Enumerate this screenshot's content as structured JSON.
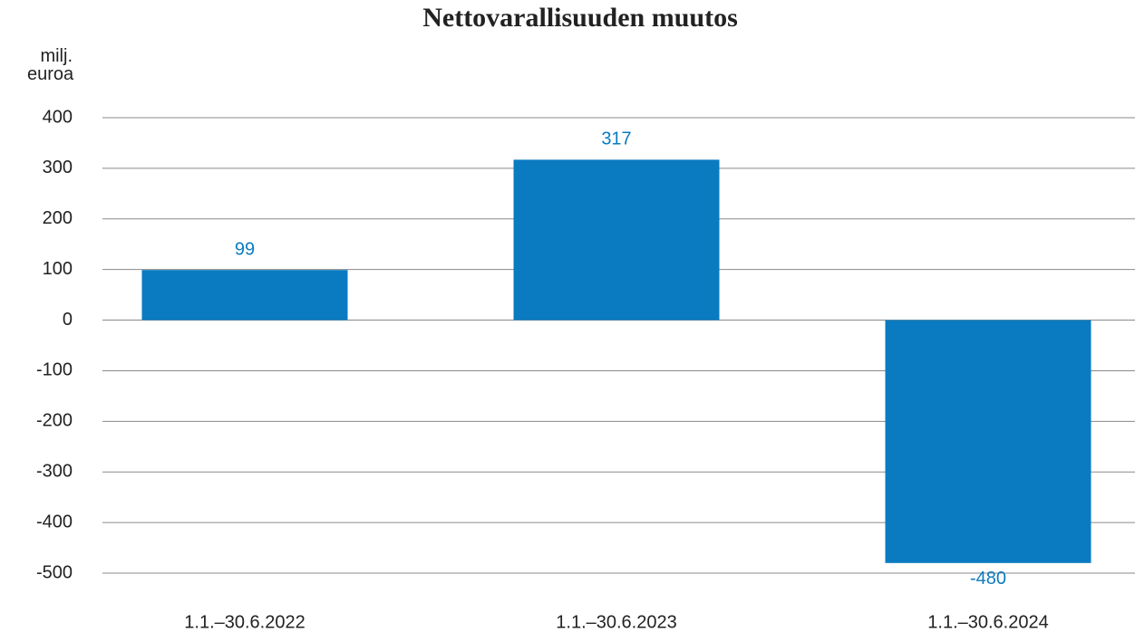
{
  "chart_data": {
    "type": "bar",
    "title": "Nettovarallisuuden muutos",
    "ylabel": "milj. euroa",
    "categories": [
      "1.1.–30.6.2022",
      "1.1.–30.6.2023",
      "1.1.–30.6.2024"
    ],
    "values": [
      99,
      317,
      -480
    ],
    "color": "#0a7bc1",
    "ylim": [
      -500,
      400
    ],
    "yticks": [
      -500,
      -400,
      -300,
      -200,
      -100,
      0,
      100,
      200,
      300,
      400
    ],
    "grid": true
  }
}
